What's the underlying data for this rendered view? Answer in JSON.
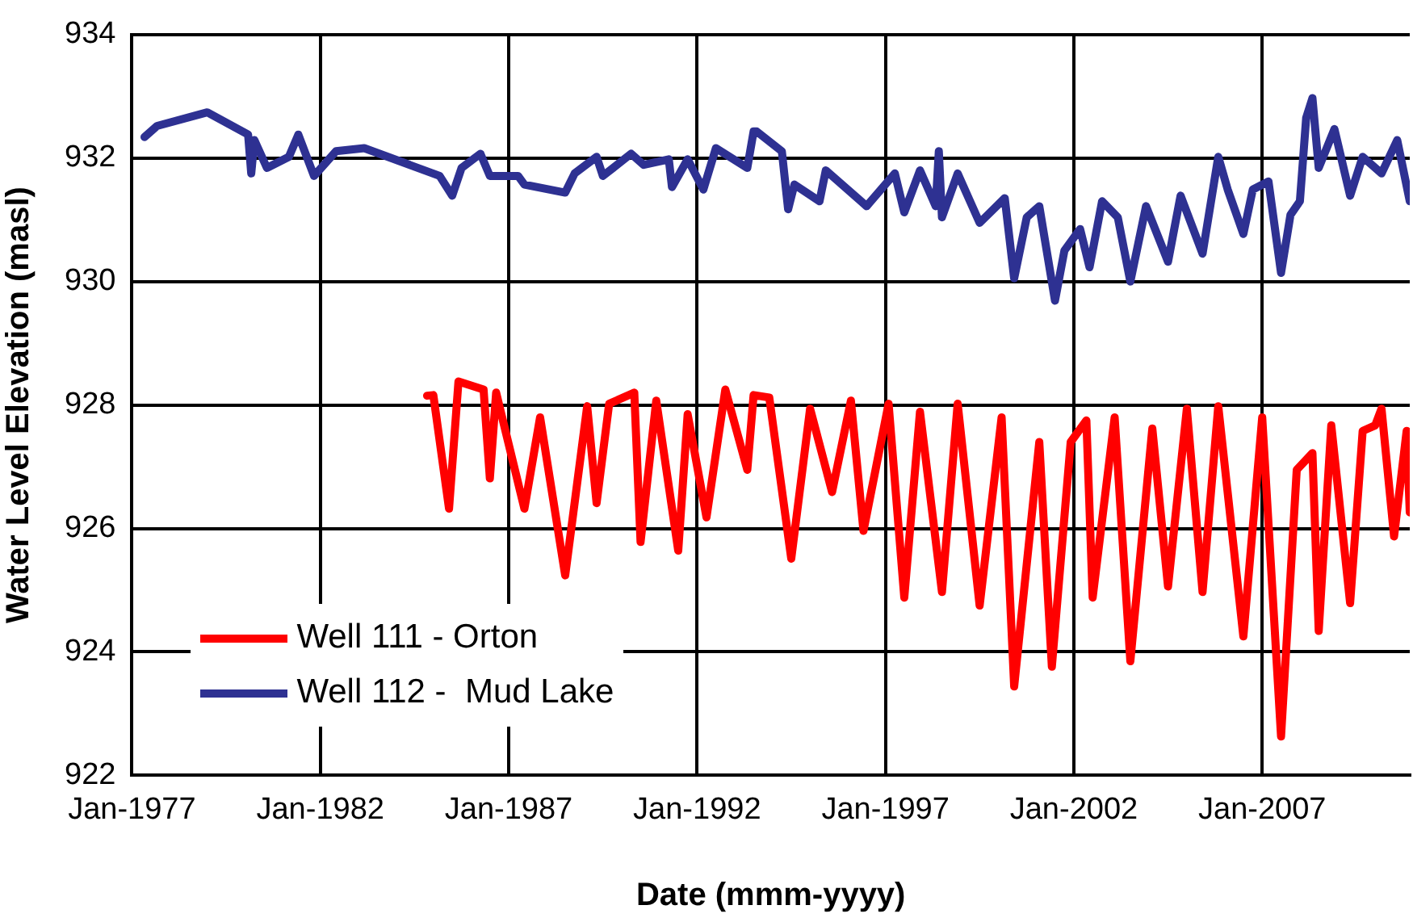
{
  "chart_data": {
    "type": "line",
    "xlabel": "Date (mmm-yyyy)",
    "ylabel": "Water Level Elevation (masl)",
    "xlim": [
      "1977-01",
      "2010-12"
    ],
    "xticks": [
      {
        "value": "1977-01",
        "label": "Jan-1977"
      },
      {
        "value": "1982-01",
        "label": "Jan-1982"
      },
      {
        "value": "1987-01",
        "label": "Jan-1987"
      },
      {
        "value": "1992-01",
        "label": "Jan-1992"
      },
      {
        "value": "1997-01",
        "label": "Jan-1997"
      },
      {
        "value": "2002-01",
        "label": "Jan-2002"
      },
      {
        "value": "2007-01",
        "label": "Jan-2007"
      }
    ],
    "ylim": [
      922,
      934
    ],
    "yticks": [
      922,
      924,
      926,
      928,
      930,
      932,
      934
    ],
    "grid": true,
    "legend": "bottom left",
    "line_style": "solid",
    "series": [
      {
        "name": "Well 111 - Orton",
        "color": "#ff0000",
        "x": [
          "1984-11",
          "1985-01",
          "1985-06",
          "1985-09",
          "1986-05",
          "1986-07",
          "1986-09",
          "1987-06",
          "1987-11",
          "1988-07",
          "1989-02",
          "1989-05",
          "1989-09",
          "1990-05",
          "1990-07",
          "1990-12",
          "1991-07",
          "1991-10",
          "1992-04",
          "1992-10",
          "1993-05",
          "1993-07",
          "1993-12",
          "1994-07",
          "1995-01",
          "1995-08",
          "1996-02",
          "1996-06",
          "1997-02",
          "1997-07",
          "1997-12",
          "1998-07",
          "1998-12",
          "1999-07",
          "2000-02",
          "2000-06",
          "2001-02",
          "2001-06",
          "2001-12",
          "2002-05",
          "2002-07",
          "2003-02",
          "2003-07",
          "2004-02",
          "2004-07",
          "2005-01",
          "2005-06",
          "2005-11",
          "2006-07",
          "2007-01",
          "2007-07",
          "2007-12",
          "2008-05",
          "2008-07",
          "2008-11",
          "2009-05",
          "2009-09",
          "2010-01",
          "2010-03",
          "2010-07",
          "2010-11",
          "2010-12"
        ],
        "values": [
          928.15,
          928.16,
          926.32,
          928.38,
          928.25,
          926.81,
          928.2,
          926.32,
          927.8,
          925.24,
          927.98,
          926.41,
          928.02,
          928.2,
          925.78,
          928.07,
          925.64,
          927.85,
          926.18,
          928.25,
          926.95,
          928.16,
          928.12,
          925.51,
          927.94,
          926.59,
          928.07,
          925.96,
          928.02,
          924.88,
          927.89,
          924.97,
          928.02,
          924.75,
          927.8,
          923.44,
          927.4,
          923.76,
          927.4,
          927.75,
          924.88,
          927.8,
          923.85,
          927.62,
          925.06,
          927.94,
          924.97,
          927.98,
          924.25,
          927.8,
          922.63,
          926.95,
          927.22,
          924.34,
          927.67,
          924.79,
          927.58,
          927.67,
          927.94,
          925.87,
          927.58,
          926.26
        ]
      },
      {
        "name": "Well 112 -  Mud Lake",
        "color": "#2e3192",
        "x": [
          "1977-05",
          "1977-09",
          "1979-01",
          "1980-02",
          "1980-03",
          "1980-04",
          "1980-08",
          "1981-03",
          "1981-06",
          "1981-11",
          "1982-06",
          "1983-03",
          "1985-03",
          "1985-07",
          "1985-10",
          "1986-04",
          "1986-07",
          "1987-04",
          "1987-06",
          "1988-07",
          "1988-10",
          "1989-05",
          "1989-07",
          "1990-04",
          "1990-08",
          "1991-04",
          "1991-05",
          "1991-10",
          "1992-03",
          "1992-07",
          "1993-05",
          "1993-07",
          "1993-08",
          "1994-04",
          "1994-06",
          "1994-08",
          "1995-04",
          "1995-06",
          "1996-07",
          "1997-04",
          "1997-07",
          "1997-12",
          "1998-05",
          "1998-06",
          "1998-07",
          "1998-12",
          "1999-07",
          "2000-03",
          "2000-06",
          "2000-10",
          "2001-02",
          "2001-07",
          "2001-10",
          "2002-03",
          "2002-06",
          "2002-10",
          "2003-03",
          "2003-07",
          "2003-12",
          "2004-07",
          "2004-11",
          "2005-06",
          "2005-11",
          "2006-02",
          "2006-07",
          "2006-10",
          "2007-03",
          "2007-07",
          "2007-10",
          "2008-01",
          "2008-03",
          "2008-05",
          "2008-07",
          "2008-12",
          "2009-05",
          "2009-09",
          "2010-03",
          "2010-08",
          "2010-12"
        ],
        "values": [
          932.34,
          932.52,
          932.74,
          932.38,
          931.75,
          932.29,
          931.84,
          932.02,
          932.38,
          931.71,
          932.11,
          932.16,
          931.71,
          931.39,
          931.84,
          932.07,
          931.71,
          931.71,
          931.57,
          931.44,
          931.75,
          932.02,
          931.71,
          932.07,
          931.89,
          931.98,
          931.53,
          931.98,
          931.49,
          932.16,
          931.84,
          932.43,
          932.43,
          932.11,
          931.17,
          931.57,
          931.3,
          931.8,
          931.22,
          931.75,
          931.12,
          931.8,
          931.22,
          932.11,
          931.04,
          931.75,
          930.95,
          931.35,
          930.05,
          931.04,
          931.22,
          929.69,
          930.5,
          930.85,
          930.23,
          931.3,
          931.04,
          930.0,
          931.22,
          930.32,
          931.39,
          930.45,
          932.02,
          931.49,
          930.77,
          931.49,
          931.62,
          930.14,
          931.08,
          931.3,
          932.65,
          932.97,
          931.84,
          932.47,
          931.39,
          932.02,
          931.75,
          932.29,
          931.3
        ]
      }
    ]
  }
}
